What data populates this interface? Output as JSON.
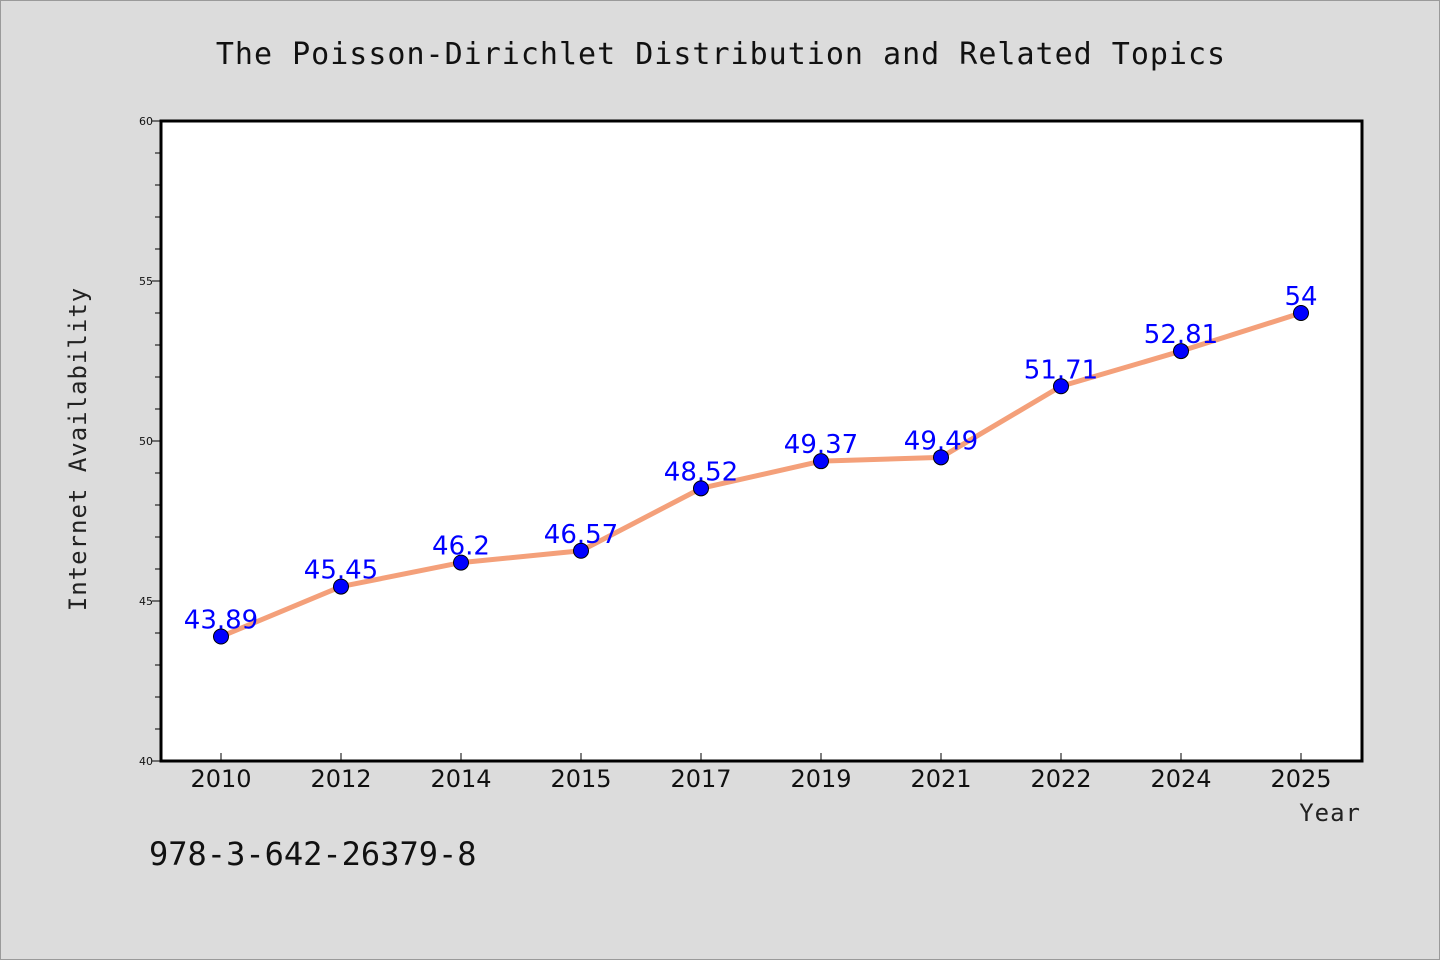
{
  "chart_data": {
    "type": "line",
    "title": "The Poisson-Dirichlet Distribution and Related Topics",
    "xlabel": "Year",
    "ylabel": "Internet Availability",
    "categories": [
      "2010",
      "2012",
      "2014",
      "2015",
      "2017",
      "2019",
      "2021",
      "2022",
      "2024",
      "2025"
    ],
    "series": [
      {
        "values": [
          43.89,
          45.45,
          46.2,
          46.57,
          48.52,
          49.37,
          49.49,
          51.71,
          52.81,
          54
        ],
        "labels": [
          "43.89",
          "45.45",
          "46.2",
          "46.57",
          "48.52",
          "49.37",
          "49.49",
          "51.71",
          "52.81",
          "54"
        ]
      }
    ],
    "ylim": [
      40,
      60
    ],
    "yticks": [
      "40",
      "45",
      "50",
      "55",
      "60"
    ],
    "grid": false,
    "legend": "none",
    "line_color": "#f4a07a",
    "marker_color": "#0000ff",
    "data_label_color": "#0000ff"
  },
  "footer": {
    "isbn": "978-3-642-26379-8"
  }
}
